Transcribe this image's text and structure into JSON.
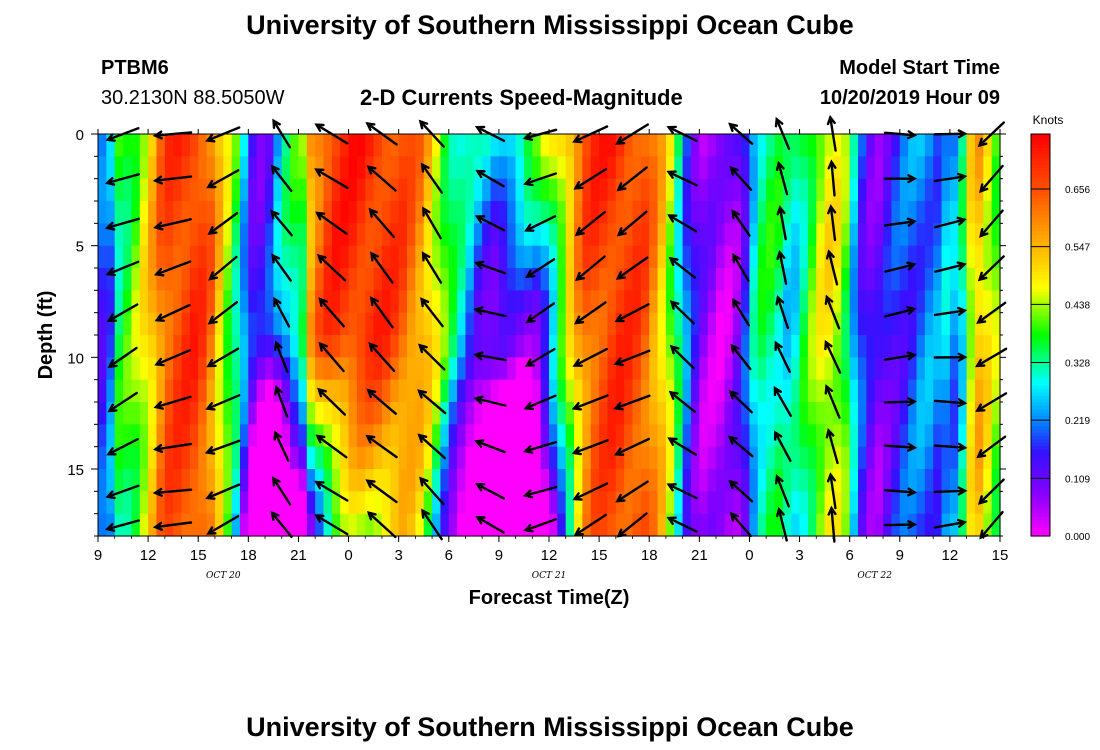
{
  "page": {
    "top_title": "University of Southern Mississippi Ocean Cube",
    "bottom_title": "University of Southern Mississippi Ocean Cube",
    "station": "PTBM6",
    "location": "30.2130N 88.5050W",
    "plot_title": "2-D Currents Speed-Magnitude",
    "model_start_label": "Model Start Time",
    "model_start_value": "10/20/2019 Hour 09"
  },
  "chart_data": {
    "type": "heatmap",
    "title": "2-D Currents Speed-Magnitude",
    "xlabel": "Forecast Time(Z)",
    "ylabel": "Depth (ft)",
    "x_tick_labels": [
      "9",
      "12",
      "15",
      "18",
      "21",
      "0",
      "3",
      "6",
      "9",
      "12",
      "15",
      "18",
      "21",
      "0",
      "3",
      "6",
      "9",
      "12",
      "15"
    ],
    "x_tick_hours": [
      0,
      3,
      6,
      9,
      12,
      15,
      18,
      21,
      24,
      27,
      30,
      33,
      36,
      39,
      42,
      45,
      48,
      51,
      54
    ],
    "x_range_hours_since_start": [
      0,
      54
    ],
    "date_labels": [
      {
        "text": "OCT 20",
        "hour": 7.5
      },
      {
        "text": "OCT 21",
        "hour": 27
      },
      {
        "text": "OCT 22",
        "hour": 46.5
      }
    ],
    "y_ticks": [
      0,
      5,
      10,
      15
    ],
    "y_range": [
      0,
      18
    ],
    "y_inverted": true,
    "colorbar": {
      "unit": "Knots",
      "tick_labels": [
        "0.000",
        "0.109",
        "0.219",
        "0.328",
        "0.438",
        "0.547",
        "0.656"
      ],
      "ticks": [
        0.0,
        0.109,
        0.219,
        0.328,
        0.438,
        0.547,
        0.656
      ],
      "range": [
        0,
        0.76
      ],
      "stops": [
        {
          "v": 0.0,
          "c": "#ff00ff"
        },
        {
          "v": 0.08,
          "c": "#8800ff"
        },
        {
          "v": 0.16,
          "c": "#3311ff"
        },
        {
          "v": 0.219,
          "c": "#0088ff"
        },
        {
          "v": 0.29,
          "c": "#00ffff"
        },
        {
          "v": 0.38,
          "c": "#00ff00"
        },
        {
          "v": 0.47,
          "c": "#ffff00"
        },
        {
          "v": 0.56,
          "c": "#ffaa00"
        },
        {
          "v": 0.65,
          "c": "#ff5500"
        },
        {
          "v": 0.76,
          "c": "#ff0000"
        }
      ]
    },
    "surface_speed_knots": [
      {
        "h": 0.0,
        "v": 0.22
      },
      {
        "h": 0.5,
        "v": 0.15
      },
      {
        "h": 1.2,
        "v": 0.36
      },
      {
        "h": 2.0,
        "v": 0.4
      },
      {
        "h": 2.6,
        "v": 0.46
      },
      {
        "h": 3.3,
        "v": 0.55
      },
      {
        "h": 4.0,
        "v": 0.66
      },
      {
        "h": 5.0,
        "v": 0.69
      },
      {
        "h": 6.0,
        "v": 0.7
      },
      {
        "h": 6.8,
        "v": 0.62
      },
      {
        "h": 7.5,
        "v": 0.48
      },
      {
        "h": 8.3,
        "v": 0.36
      },
      {
        "h": 9.2,
        "v": 0.16
      },
      {
        "h": 10.0,
        "v": 0.12
      },
      {
        "h": 10.8,
        "v": 0.25
      },
      {
        "h": 11.5,
        "v": 0.34
      },
      {
        "h": 12.3,
        "v": 0.4
      },
      {
        "h": 12.8,
        "v": 0.6
      },
      {
        "h": 14.0,
        "v": 0.7
      },
      {
        "h": 15.5,
        "v": 0.71
      },
      {
        "h": 17.0,
        "v": 0.7
      },
      {
        "h": 18.3,
        "v": 0.66
      },
      {
        "h": 19.5,
        "v": 0.58
      },
      {
        "h": 20.2,
        "v": 0.48
      },
      {
        "h": 21.0,
        "v": 0.36
      },
      {
        "h": 21.8,
        "v": 0.28
      },
      {
        "h": 22.8,
        "v": 0.17
      },
      {
        "h": 23.8,
        "v": 0.1
      },
      {
        "h": 25.0,
        "v": 0.1
      },
      {
        "h": 26.2,
        "v": 0.15
      },
      {
        "h": 27.0,
        "v": 0.26
      },
      {
        "h": 27.8,
        "v": 0.4
      },
      {
        "h": 28.6,
        "v": 0.55
      },
      {
        "h": 29.4,
        "v": 0.66
      },
      {
        "h": 31.0,
        "v": 0.7
      },
      {
        "h": 32.6,
        "v": 0.67
      },
      {
        "h": 33.6,
        "v": 0.56
      },
      {
        "h": 34.4,
        "v": 0.42
      },
      {
        "h": 35.2,
        "v": 0.22
      },
      {
        "h": 36.0,
        "v": 0.09
      },
      {
        "h": 37.5,
        "v": 0.05
      },
      {
        "h": 38.5,
        "v": 0.11
      },
      {
        "h": 39.2,
        "v": 0.28
      },
      {
        "h": 39.8,
        "v": 0.35
      },
      {
        "h": 40.6,
        "v": 0.36
      },
      {
        "h": 41.5,
        "v": 0.28
      },
      {
        "h": 42.3,
        "v": 0.36
      },
      {
        "h": 43.2,
        "v": 0.46
      },
      {
        "h": 44.0,
        "v": 0.5
      },
      {
        "h": 44.8,
        "v": 0.4
      },
      {
        "h": 45.5,
        "v": 0.2
      },
      {
        "h": 46.5,
        "v": 0.1
      },
      {
        "h": 48.0,
        "v": 0.18
      },
      {
        "h": 49.5,
        "v": 0.23
      },
      {
        "h": 50.5,
        "v": 0.22
      },
      {
        "h": 51.0,
        "v": 0.3
      },
      {
        "h": 51.5,
        "v": 0.18
      },
      {
        "h": 52.0,
        "v": 0.45
      },
      {
        "h": 52.8,
        "v": 0.55
      },
      {
        "h": 53.5,
        "v": 0.46
      },
      {
        "h": 54.0,
        "v": 0.4
      }
    ],
    "current_vectors_knots": [
      {
        "h": 1.5,
        "dir": 245,
        "spd": 0.4
      },
      {
        "h": 4.5,
        "dir": 255,
        "spd": 0.62
      },
      {
        "h": 7.5,
        "dir": 240,
        "spd": 0.5
      },
      {
        "h": 11.0,
        "dir": 330,
        "spd": 0.3
      },
      {
        "h": 14.0,
        "dir": 310,
        "spd": 0.66
      },
      {
        "h": 17.0,
        "dir": 315,
        "spd": 0.64
      },
      {
        "h": 20.0,
        "dir": 320,
        "spd": 0.5
      },
      {
        "h": 23.5,
        "dir": 290,
        "spd": 0.25
      },
      {
        "h": 26.5,
        "dir": 245,
        "spd": 0.36
      },
      {
        "h": 29.5,
        "dir": 240,
        "spd": 0.66
      },
      {
        "h": 32.0,
        "dir": 240,
        "spd": 0.64
      },
      {
        "h": 35.0,
        "dir": 305,
        "spd": 0.3
      },
      {
        "h": 38.5,
        "dir": 320,
        "spd": 0.22
      },
      {
        "h": 41.0,
        "dir": 340,
        "spd": 0.36
      },
      {
        "h": 44.0,
        "dir": 345,
        "spd": 0.46
      },
      {
        "h": 48.0,
        "dir": 85,
        "spd": 0.22
      },
      {
        "h": 51.0,
        "dir": 85,
        "spd": 0.25
      },
      {
        "h": 53.5,
        "dir": 230,
        "spd": 0.45
      }
    ]
  }
}
